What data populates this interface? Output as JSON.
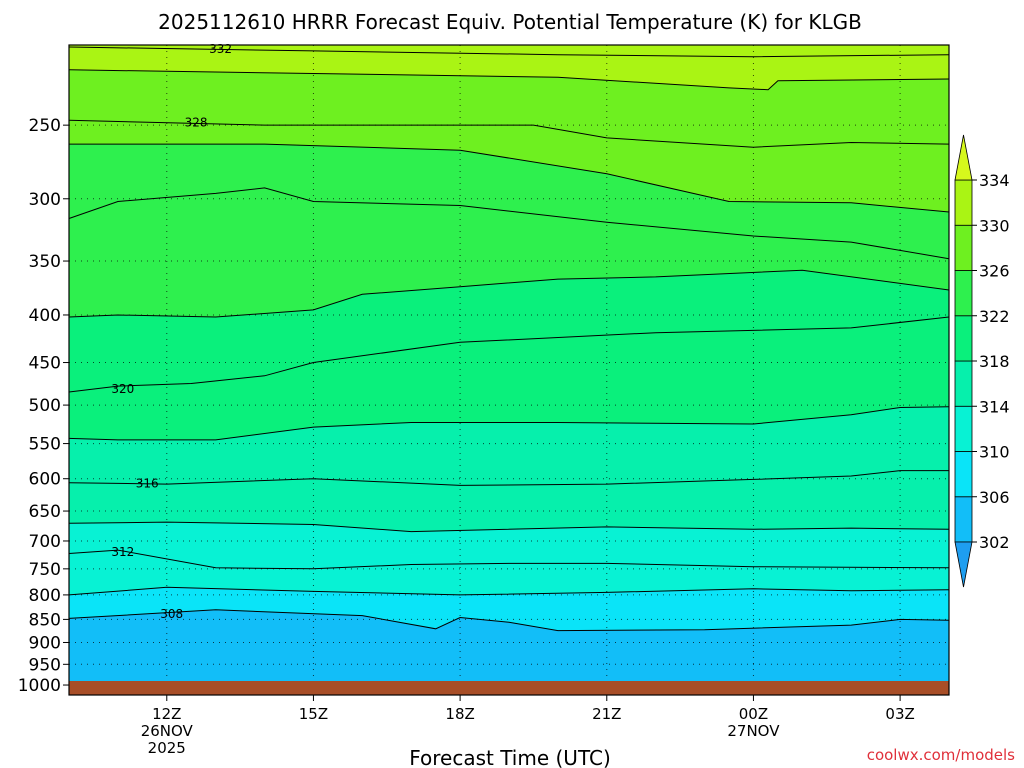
{
  "chart_data": {
    "type": "heatmap",
    "subtype": "time-height filled contour",
    "title": "2025112610 HRRR Forecast Equiv. Potential Temperature (K) for KLGB",
    "xlabel": "Forecast Time (UTC)",
    "ylabel": "",
    "credit": "coolwx.com/models",
    "x_ticks": [
      {
        "label": "12Z",
        "sub1": "26NOV",
        "sub2": "2025",
        "hour": 2
      },
      {
        "label": "15Z",
        "sub1": "",
        "sub2": "",
        "hour": 5
      },
      {
        "label": "18Z",
        "sub1": "",
        "sub2": "",
        "hour": 8
      },
      {
        "label": "21Z",
        "sub1": "",
        "sub2": "",
        "hour": 11
      },
      {
        "label": "00Z",
        "sub1": "27NOV",
        "sub2": "",
        "hour": 14
      },
      {
        "label": "03Z",
        "sub1": "",
        "sub2": "",
        "hour": 17
      }
    ],
    "xlim_hours": [
      0,
      18
    ],
    "y_axis": "pressure (hPa), inverted",
    "ylim": [
      1025,
      205
    ],
    "y_ticks": [
      250,
      300,
      350,
      400,
      450,
      500,
      550,
      600,
      650,
      700,
      750,
      800,
      850,
      900,
      950,
      1000
    ],
    "grid": true,
    "colorbar": {
      "position": "right",
      "levels": [
        302,
        306,
        310,
        314,
        318,
        322,
        326,
        330,
        334
      ],
      "colors": [
        "#1e9ef0",
        "#12bef8",
        "#0ae4f8",
        "#08f2d4",
        "#06f0ac",
        "#0af07c",
        "#2ef04e",
        "#6ef020",
        "#aaf414",
        "#d6f81c"
      ]
    },
    "contours": [
      {
        "value": 332,
        "label": "332",
        "points": [
          [
            0,
            206
          ],
          [
            5,
            208
          ],
          [
            10,
            210
          ],
          [
            14,
            211
          ],
          [
            18,
            210
          ]
        ]
      },
      {
        "value": 330,
        "label": "",
        "points": [
          [
            0,
            218
          ],
          [
            5,
            220
          ],
          [
            10,
            222
          ],
          [
            13.5,
            228
          ],
          [
            14.3,
            229
          ],
          [
            14.5,
            224
          ],
          [
            18,
            223
          ]
        ]
      },
      {
        "value": 328,
        "label": "328",
        "points": [
          [
            0,
            247
          ],
          [
            4,
            250
          ],
          [
            8,
            250
          ],
          [
            9.5,
            250
          ],
          [
            11,
            258
          ],
          [
            14,
            264
          ],
          [
            16,
            261
          ],
          [
            18,
            262
          ]
        ]
      },
      {
        "value": 326,
        "label": "",
        "points": [
          [
            0,
            262
          ],
          [
            4,
            262
          ],
          [
            8,
            266
          ],
          [
            11,
            282
          ],
          [
            13.5,
            302
          ],
          [
            16,
            303
          ],
          [
            18,
            310
          ]
        ]
      },
      {
        "value": 324,
        "label": "",
        "points": [
          [
            0,
            315
          ],
          [
            1,
            302
          ],
          [
            3,
            296
          ],
          [
            4,
            292
          ],
          [
            5,
            302
          ],
          [
            8,
            305
          ],
          [
            11,
            318
          ],
          [
            14,
            329
          ],
          [
            16,
            334
          ],
          [
            18,
            348
          ]
        ]
      },
      {
        "value": 322,
        "label": "",
        "points": [
          [
            0,
            402
          ],
          [
            1,
            400
          ],
          [
            3,
            402
          ],
          [
            5,
            395
          ],
          [
            6,
            380
          ],
          [
            8,
            373
          ],
          [
            10,
            366
          ],
          [
            12,
            364
          ],
          [
            15,
            358
          ],
          [
            18,
            376
          ]
        ]
      },
      {
        "value": 320,
        "label": "320",
        "points": [
          [
            0,
            484
          ],
          [
            1,
            477
          ],
          [
            2.5,
            474
          ],
          [
            4,
            465
          ],
          [
            5,
            450
          ],
          [
            8,
            428
          ],
          [
            12,
            418
          ],
          [
            16,
            413
          ],
          [
            18,
            402
          ]
        ]
      },
      {
        "value": 318,
        "label": "",
        "points": [
          [
            0,
            543
          ],
          [
            1,
            545
          ],
          [
            3,
            545
          ],
          [
            5,
            528
          ],
          [
            7,
            522
          ],
          [
            10,
            522
          ],
          [
            14,
            524
          ],
          [
            16,
            512
          ],
          [
            17,
            503
          ],
          [
            18,
            502
          ]
        ]
      },
      {
        "value": 316,
        "label": "316",
        "points": [
          [
            0,
            606
          ],
          [
            2,
            608
          ],
          [
            5,
            600
          ],
          [
            8,
            610
          ],
          [
            11,
            608
          ],
          [
            14,
            601
          ],
          [
            16,
            596
          ],
          [
            17,
            588
          ],
          [
            18,
            588
          ]
        ]
      },
      {
        "value": 314,
        "label": "",
        "points": [
          [
            0,
            670
          ],
          [
            2,
            668
          ],
          [
            5,
            672
          ],
          [
            7,
            684
          ],
          [
            11,
            676
          ],
          [
            14,
            680
          ],
          [
            16,
            678
          ],
          [
            18,
            680
          ]
        ]
      },
      {
        "value": 312,
        "label": "312",
        "points": [
          [
            0,
            722
          ],
          [
            1,
            716
          ],
          [
            3,
            748
          ],
          [
            5,
            750
          ],
          [
            7,
            742
          ],
          [
            9,
            740
          ],
          [
            11,
            740
          ],
          [
            14,
            746
          ],
          [
            18,
            748
          ]
        ]
      },
      {
        "value": 310,
        "label": "",
        "points": [
          [
            0,
            800
          ],
          [
            2,
            785
          ],
          [
            5,
            793
          ],
          [
            8,
            800
          ],
          [
            11,
            795
          ],
          [
            14,
            788
          ],
          [
            16,
            792
          ],
          [
            18,
            790
          ]
        ]
      },
      {
        "value": 308,
        "label": "308",
        "points": [
          [
            0,
            848
          ],
          [
            3,
            830
          ],
          [
            6,
            842
          ],
          [
            7.5,
            870
          ],
          [
            8,
            846
          ],
          [
            9,
            856
          ],
          [
            10,
            874
          ],
          [
            13,
            872
          ],
          [
            16,
            862
          ],
          [
            17,
            850
          ],
          [
            18,
            852
          ]
        ]
      }
    ],
    "terrain_color": "#a84e27"
  }
}
